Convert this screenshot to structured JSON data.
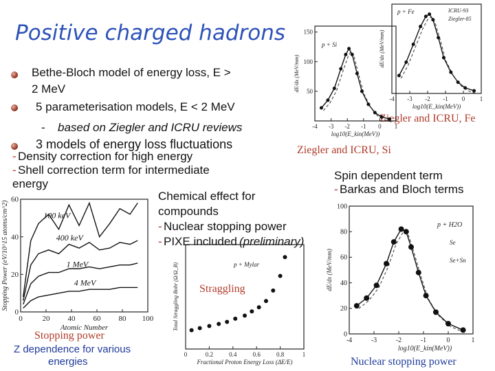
{
  "slide": {
    "title": "Positive charged hadrons",
    "bullets": [
      "Bethe-Bloch model of energy loss, E >",
      "2 MeV",
      "5 parameterisation models, E < 2 MeV",
      "based on Ziegler and ICRU reviews",
      "3 models of energy loss fluctuations"
    ],
    "dash": "-",
    "density_text": "Density correction for high energy",
    "shell_text": "Shell correction term for intermediate",
    "energy_text": "energy",
    "chem_line1": "Chemical effect for",
    "chem_line2": "compounds",
    "nuclear_text": "Nuclear stopping power",
    "pixe_text": "PIXE included",
    "pixe_note": "(preliminary)",
    "spin_text": "Spin dependent term",
    "barkas_text": "Barkas and Bloch terms",
    "cap_fe": "Ziegler and ICRU, Fe",
    "cap_si": "Ziegler and ICRU, Si",
    "cap_stopping": "Stopping power",
    "cap_zdep1": "Z dependence for various",
    "cap_zdep2": "energies",
    "cap_straggling": "Straggling",
    "cap_nuclear": "Nuclear stopping power"
  },
  "chart_data": [
    {
      "type": "line",
      "panel": "Si",
      "legend_label": "p + Si",
      "ylabel": "dE/dx (MeV/mm)",
      "xlabel": "log10(E_kin(MeV))",
      "x_ticks": [
        "-4",
        "-3",
        "-2",
        "-1",
        "0",
        "1"
      ],
      "y_ticks": [
        "50",
        "100",
        "150"
      ],
      "xlim": [
        -4,
        1
      ],
      "ylim": [
        0,
        160
      ],
      "series": [
        {
          "values": [
            [
              -3.6,
              22
            ],
            [
              -3.2,
              35
            ],
            [
              -2.8,
              55
            ],
            [
              -2.4,
              88
            ],
            [
              -2.1,
              112
            ],
            [
              -1.9,
              122
            ],
            [
              -1.7,
              112
            ],
            [
              -1.4,
              80
            ],
            [
              -1.1,
              50
            ],
            [
              -0.7,
              28
            ],
            [
              -0.3,
              14
            ],
            [
              0.1,
              7
            ],
            [
              0.6,
              3
            ]
          ]
        }
      ]
    },
    {
      "type": "line",
      "panel": "Fe",
      "legend_label": "p + Fe",
      "legend_entries": [
        "ICRU-93",
        "Ziegler-85"
      ],
      "ylabel": "dE/dx (MeV/mm)",
      "xlabel": "log10(E_kin(MeV))",
      "x_ticks": [
        "-4",
        "-3",
        "-2",
        "-1",
        "0",
        "1"
      ],
      "xlim": [
        -4,
        1
      ],
      "ylim": [
        0,
        400
      ],
      "series": [
        {
          "values": [
            [
              -3.6,
              80
            ],
            [
              -3.2,
              140
            ],
            [
              -2.8,
              220
            ],
            [
              -2.4,
              300
            ],
            [
              -2.1,
              345
            ],
            [
              -1.9,
              355
            ],
            [
              -1.7,
              330
            ],
            [
              -1.4,
              250
            ],
            [
              -1.1,
              160
            ],
            [
              -0.7,
              95
            ],
            [
              -0.3,
              50
            ],
            [
              0.1,
              25
            ],
            [
              0.6,
              12
            ]
          ]
        }
      ]
    },
    {
      "type": "line",
      "panel": "Z dependence",
      "ylabel": "Stopping Power (eV/10^15 atoms/cm^2)",
      "xlabel": "Atomic Number",
      "x_ticks": [
        "0",
        "20",
        "40",
        "60",
        "80",
        "100"
      ],
      "y_ticks": [
        "0",
        "20",
        "40",
        "60"
      ],
      "xlim": [
        0,
        100
      ],
      "ylim": [
        0,
        60
      ],
      "series": [
        {
          "name": "100 keV",
          "values": [
            [
              2,
              8
            ],
            [
              8,
              38
            ],
            [
              14,
              47
            ],
            [
              22,
              52
            ],
            [
              30,
              44
            ],
            [
              38,
              57
            ],
            [
              46,
              46
            ],
            [
              54,
              58
            ],
            [
              62,
              40
            ],
            [
              70,
              47
            ],
            [
              78,
              55
            ],
            [
              86,
              52
            ],
            [
              92,
              58
            ]
          ]
        },
        {
          "name": "400 keV",
          "values": [
            [
              2,
              6
            ],
            [
              8,
              25
            ],
            [
              14,
              31
            ],
            [
              22,
              33
            ],
            [
              30,
              31
            ],
            [
              38,
              36
            ],
            [
              46,
              34
            ],
            [
              54,
              37
            ],
            [
              62,
              33
            ],
            [
              70,
              34
            ],
            [
              78,
              37
            ],
            [
              86,
              36
            ],
            [
              92,
              38
            ]
          ]
        },
        {
          "name": "1 MeV",
          "values": [
            [
              2,
              4
            ],
            [
              8,
              15
            ],
            [
              14,
              19
            ],
            [
              22,
              21
            ],
            [
              30,
              21
            ],
            [
              38,
              23
            ],
            [
              46,
              23
            ],
            [
              54,
              24
            ],
            [
              62,
              23
            ],
            [
              70,
              24
            ],
            [
              78,
              25
            ],
            [
              86,
              25
            ],
            [
              92,
              26
            ]
          ]
        },
        {
          "name": "4 MeV",
          "values": [
            [
              2,
              2
            ],
            [
              8,
              6
            ],
            [
              14,
              8
            ],
            [
              22,
              9
            ],
            [
              30,
              10
            ],
            [
              38,
              11
            ],
            [
              46,
              11
            ],
            [
              54,
              12
            ],
            [
              62,
              12
            ],
            [
              70,
              12
            ],
            [
              78,
              13
            ],
            [
              86,
              13
            ],
            [
              92,
              13
            ]
          ]
        }
      ]
    },
    {
      "type": "scatter",
      "panel": "Straggling",
      "legend_label": "p + Mylar",
      "ylabel": "Total Straggling Bohr (Ω/Ω_B)",
      "xlabel": "Fractional Proton Energy Loss (ΔE/E)",
      "x_ticks": [
        "0",
        "0.2",
        "0.4",
        "0.6",
        "0.8",
        "1"
      ],
      "xlim": [
        0,
        1
      ],
      "ylim": [
        0,
        5
      ],
      "series": [
        {
          "values": [
            [
              0.05,
              0.9
            ],
            [
              0.12,
              1.0
            ],
            [
              0.2,
              1.1
            ],
            [
              0.28,
              1.2
            ],
            [
              0.35,
              1.3
            ],
            [
              0.42,
              1.45
            ],
            [
              0.5,
              1.6
            ],
            [
              0.56,
              1.8
            ],
            [
              0.62,
              2.0
            ],
            [
              0.68,
              2.3
            ],
            [
              0.74,
              2.8
            ],
            [
              0.8,
              3.5
            ],
            [
              0.84,
              4.4
            ]
          ]
        }
      ]
    },
    {
      "type": "line",
      "panel": "Nuclear stopping",
      "legend_label": "p + H2O",
      "legend_entries": [
        "Se",
        "Se+Sn"
      ],
      "ylabel": "dE/dx (MeV/mm)",
      "xlabel": "log10(E_kin(MeV))",
      "x_ticks": [
        "-4",
        "-3",
        "-2",
        "-1",
        "0",
        "1"
      ],
      "y_ticks": [
        "0",
        "20",
        "40",
        "60",
        "80",
        "100"
      ],
      "xlim": [
        -4,
        1
      ],
      "ylim": [
        0,
        100
      ],
      "series": [
        {
          "name": "Se+Sn",
          "values": [
            [
              -3.7,
              22
            ],
            [
              -3.3,
              28
            ],
            [
              -2.9,
              38
            ],
            [
              -2.5,
              55
            ],
            [
              -2.2,
              72
            ],
            [
              -1.9,
              82
            ],
            [
              -1.7,
              80
            ],
            [
              -1.5,
              68
            ],
            [
              -1.2,
              48
            ],
            [
              -0.9,
              30
            ],
            [
              -0.5,
              17
            ],
            [
              0,
              8
            ],
            [
              0.6,
              3
            ]
          ]
        }
      ]
    }
  ]
}
